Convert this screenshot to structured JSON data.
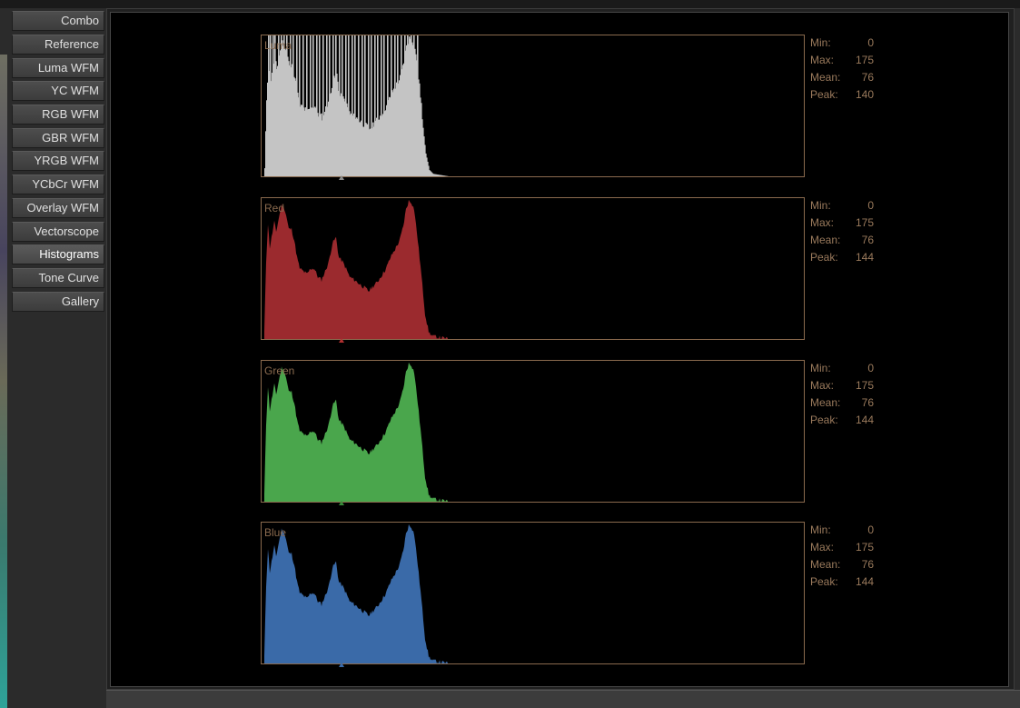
{
  "sidebar": {
    "items": [
      {
        "label": "Combo"
      },
      {
        "label": "Reference"
      },
      {
        "label": "Luma WFM"
      },
      {
        "label": "YC WFM"
      },
      {
        "label": "RGB WFM"
      },
      {
        "label": "GBR WFM"
      },
      {
        "label": "YRGB WFM"
      },
      {
        "label": "YCbCr WFM"
      },
      {
        "label": "Overlay WFM"
      },
      {
        "label": "Vectorscope"
      },
      {
        "label": "Histograms",
        "active": true
      },
      {
        "label": "Tone Curve"
      },
      {
        "label": "Gallery"
      }
    ]
  },
  "stat_labels": {
    "min": "Min:",
    "max": "Max:",
    "mean": "Mean:",
    "peak": "Peak:"
  },
  "panels": [
    {
      "label": "Luma",
      "color": "#c4c4c4",
      "min": "0",
      "max": "175",
      "mean": "76",
      "peak": "140"
    },
    {
      "label": "Red",
      "color": "#9b2a2e",
      "min": "0",
      "max": "175",
      "mean": "76",
      "peak": "144"
    },
    {
      "label": "Green",
      "color": "#4aa64c",
      "min": "0",
      "max": "175",
      "mean": "76",
      "peak": "144"
    },
    {
      "label": "Blue",
      "color": "#3a6aa8",
      "min": "0",
      "max": "175",
      "mean": "76",
      "peak": "144"
    }
  ],
  "colors": {
    "frame": "#8a6a4e",
    "stat_text": "#9a7a5c",
    "background": "#000000"
  }
}
